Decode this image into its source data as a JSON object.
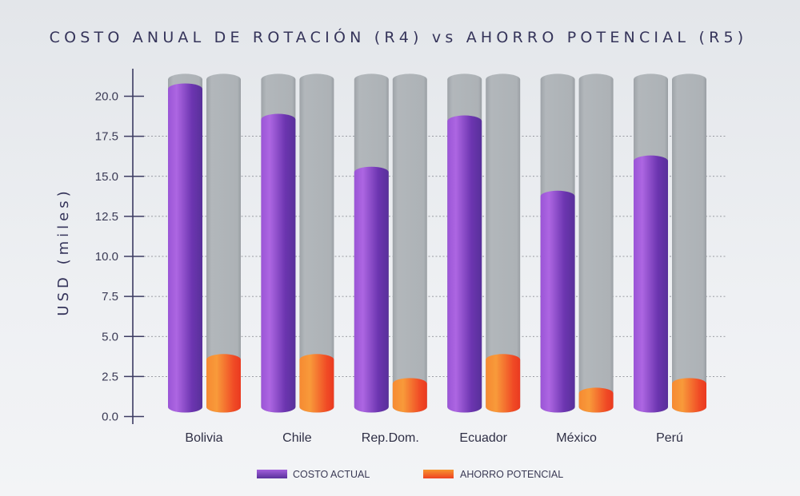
{
  "chart_data": {
    "type": "bar",
    "title": "COSTO ANUAL DE ROTACIÓN (R4) vs AHORRO POTENCIAL (R5)",
    "ylabel": "USD (miles)",
    "xlabel": "",
    "ylim": [
      0,
      21.4
    ],
    "yticks": [
      "0.0",
      "2.5",
      "5.0",
      "7.5",
      "10.0",
      "12.5",
      "15.0",
      "17.5",
      "20.0"
    ],
    "grid": true,
    "legend_position": "bottom",
    "categories": [
      "Bolivia",
      "Chile",
      "Rep.Dom.",
      "Ecuador",
      "México",
      "Perú"
    ],
    "series": [
      {
        "name": "COSTO ACTUAL",
        "color": "#9b55d8",
        "values": [
          20.8,
          18.9,
          15.6,
          18.8,
          14.1,
          16.3
        ]
      },
      {
        "name": "AHORRO POTENCIAL",
        "color": "#f5662a",
        "values": [
          3.9,
          3.9,
          2.4,
          3.9,
          1.8,
          2.4
        ]
      }
    ],
    "track_color": "#b0b5ba"
  }
}
